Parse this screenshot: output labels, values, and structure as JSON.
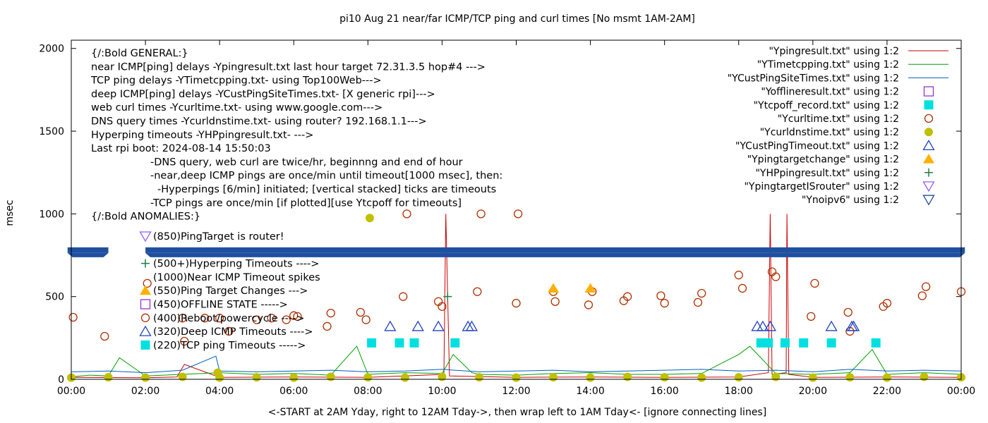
{
  "chart_data": {
    "type": "scatter",
    "title": "pi10 Aug 21  near/far ICMP/TCP ping and curl times [No msmt 1AM-2AM]",
    "xlabel": "<-START at 2AM Yday, right to 12AM Tday->, then wrap left to 1AM Tday<- [ignore connecting lines]",
    "ylabel": "msec",
    "xlim": [
      0,
      24
    ],
    "ylim": [
      0,
      2050
    ],
    "x_ticks": [
      "00:00",
      "02:00",
      "04:00",
      "06:00",
      "08:00",
      "10:00",
      "12:00",
      "14:00",
      "16:00",
      "18:00",
      "20:00",
      "22:00",
      "00:00"
    ],
    "y_ticks": [
      0,
      500,
      1000,
      1500,
      2000
    ],
    "legend_position": "top-right",
    "annotations": [
      "{/:Bold GENERAL:}",
      "near ICMP[ping] delays -Ypingresult.txt last hour target 72.31.3.5 hop#4 --->",
      "TCP ping delays -YTimetcpping.txt- using Top100Web--->",
      "deep ICMP[ping] delays -YCustPingSiteTimes.txt- [X generic rpi]--->",
      "web curl times -Ycurltime.txt- using www.google.com--->",
      "DNS query times -Ycurldnstime.txt- using router? 192.168.1.1--->",
      "Hyperping timeouts -YHPpingresult.txt- --->",
      "Last rpi boot: 2024-08-14 15:50:03",
      "-DNS query, web curl are twice/hr, beginnng and end of hour",
      "-near,deep ICMP pings are once/min until timeout[1000 msec], then:",
      "-Hyperpings [6/min] initiated; [vertical stacked] ticks are timeouts",
      "-TCP pings are once/min [if plotted][use Ytcpoff for timeouts]",
      "{/:Bold ANOMALIES:}",
      "(850)PingTarget is router!",
      "(500+)Hyperping Timeouts ---->",
      "(1000)Near ICMP Timeout spikes",
      "(550)Ping Target Changes --->",
      "(450)OFFLINE STATE ----->",
      "(400)Reboot/powercycle ---->",
      "(320)Deep ICMP Timeouts ---->",
      "(220)TCP ping Timeouts ----->"
    ],
    "series": [
      {
        "name": "\"Ypingresult.txt\" using 1:2",
        "style": "line",
        "color": "#cc0000",
        "x": [
          0,
          2,
          2.85,
          3.05,
          4.0,
          6.0,
          8.0,
          10.05,
          10.1,
          10.2,
          12.0,
          14.0,
          16.0,
          18.0,
          18.8,
          18.85,
          18.9,
          19.28,
          19.3,
          19.35,
          20.0,
          22.0,
          24.0
        ],
        "y": [
          12,
          10,
          14,
          90,
          12,
          14,
          12,
          30,
          1000,
          20,
          12,
          14,
          12,
          14,
          40,
          1000,
          30,
          40,
          1000,
          30,
          12,
          14,
          12
        ]
      },
      {
        "name": "\"YTimetcpping.txt\" using 1:2",
        "style": "line",
        "color": "#00a000",
        "x": [
          0,
          0.5,
          1.0,
          1.3,
          2.0,
          3.0,
          4.0,
          5.0,
          6.0,
          7.0,
          7.7,
          8.0,
          9.0,
          10.0,
          10.3,
          10.8,
          11.0,
          12.0,
          13.0,
          14.0,
          15.0,
          16.0,
          17.0,
          18.0,
          18.3,
          19.0,
          20.0,
          21.0,
          21.6,
          22.0,
          23.0,
          24.0
        ],
        "y": [
          15,
          25,
          20,
          130,
          20,
          30,
          40,
          30,
          35,
          25,
          200,
          30,
          40,
          35,
          150,
          40,
          30,
          25,
          35,
          40,
          30,
          30,
          35,
          150,
          200,
          35,
          30,
          40,
          180,
          30,
          40,
          30
        ]
      },
      {
        "name": "\"YCustPingSiteTimes.txt\" using 1:2",
        "style": "line",
        "color": "#0060c0",
        "x": [
          0,
          1,
          2,
          3,
          3.9,
          4.0,
          5,
          6,
          7,
          8,
          9,
          10,
          11,
          12,
          13,
          14,
          15,
          16,
          17,
          18,
          19,
          20,
          21,
          22,
          23,
          24
        ],
        "y": [
          45,
          50,
          40,
          55,
          140,
          50,
          45,
          50,
          55,
          45,
          50,
          60,
          45,
          50,
          55,
          45,
          50,
          55,
          60,
          50,
          55,
          45,
          60,
          50,
          55,
          50
        ]
      },
      {
        "name": "\"Yofflineresult.txt\" using 1:2",
        "style": "open-square",
        "color": "#9932cc",
        "x": [],
        "y": []
      },
      {
        "name": "\"Ytcpoff_record.txt\" using 1:2",
        "style": "filled-square",
        "color": "#00e0e0",
        "x": [
          8.1,
          8.85,
          9.25,
          10.35,
          18.6,
          18.8,
          19.25,
          19.75,
          20.5,
          21.7
        ],
        "y": [
          220,
          220,
          220,
          220,
          220,
          220,
          220,
          220,
          220,
          220
        ]
      },
      {
        "name": "\"Ycurltime.txt\" using 1:2",
        "style": "open-circle",
        "color": "#b03000",
        "x": [
          0.05,
          0.9,
          2.05,
          3.0,
          3.05,
          3.6,
          4.0,
          4.25,
          5.0,
          5.4,
          5.8,
          6.0,
          6.1,
          6.9,
          7.0,
          7.8,
          7.95,
          8.95,
          9.05,
          9.9,
          10.0,
          10.95,
          11.05,
          12.0,
          12.05,
          13.0,
          13.05,
          13.95,
          14.05,
          14.9,
          15.0,
          15.9,
          16.0,
          16.9,
          17.0,
          18.0,
          18.1,
          18.9,
          19.0,
          19.95,
          20.05,
          20.95,
          21.0,
          21.9,
          22.0,
          22.95,
          23.05,
          24.0
        ],
        "y": [
          375,
          260,
          580,
          370,
          230,
          370,
          370,
          290,
          360,
          370,
          360,
          385,
          380,
          320,
          400,
          405,
          360,
          500,
          1000,
          470,
          440,
          530,
          1000,
          460,
          1000,
          530,
          470,
          450,
          530,
          475,
          500,
          505,
          460,
          465,
          520,
          630,
          550,
          650,
          620,
          380,
          580,
          405,
          290,
          440,
          460,
          505,
          560,
          530
        ]
      },
      {
        "name": "\"Ycurldnstime.txt\" using 1:2",
        "style": "filled-circle",
        "color": "#c0c000",
        "x": [
          0,
          1,
          2,
          3,
          4,
          5,
          6,
          7,
          8,
          9,
          10,
          11,
          12,
          13,
          14,
          15,
          16,
          17,
          18,
          19,
          20,
          21,
          22,
          23,
          24,
          3.95,
          8.05
        ],
        "y": [
          10,
          12,
          10,
          15,
          10,
          12,
          10,
          15,
          12,
          10,
          15,
          12,
          10,
          12,
          10,
          15,
          12,
          10,
          12,
          15,
          10,
          12,
          10,
          15,
          12,
          40,
          975
        ]
      },
      {
        "name": "\"YCustPingTimeout.txt\" using 1:2",
        "style": "open-triangle",
        "color": "#2040c0",
        "x": [
          8.6,
          9.35,
          9.9,
          10.7,
          10.8,
          18.5,
          18.65,
          18.85,
          20.5,
          21.05,
          21.1
        ],
        "y": [
          320,
          320,
          320,
          320,
          320,
          320,
          320,
          320,
          320,
          320,
          320
        ]
      },
      {
        "name": "\"Ypingtargetchange\" using 1:2",
        "style": "filled-triangle",
        "color": "#ffb000",
        "x": [
          13.0,
          14.0
        ],
        "y": [
          550,
          550
        ]
      },
      {
        "name": "\"YHPpingresult.txt\" using 1:2",
        "style": "plus",
        "color": "#208040",
        "x": [
          10.15
        ],
        "y": [
          500
        ]
      },
      {
        "name": "\"YpingtargetISrouter\" using 1:2",
        "style": "open-triangle-down",
        "color": "#9060ff",
        "x": [],
        "y": []
      },
      {
        "name": "\"Ynoipv6\" using 1:2",
        "style": "open-triangle-down",
        "color": "#1f4fa0",
        "x": [
          0,
          1.0,
          1.1,
          2.0,
          24.0
        ],
        "y": [
          770,
          770,
          770,
          770,
          770
        ]
      }
    ]
  }
}
